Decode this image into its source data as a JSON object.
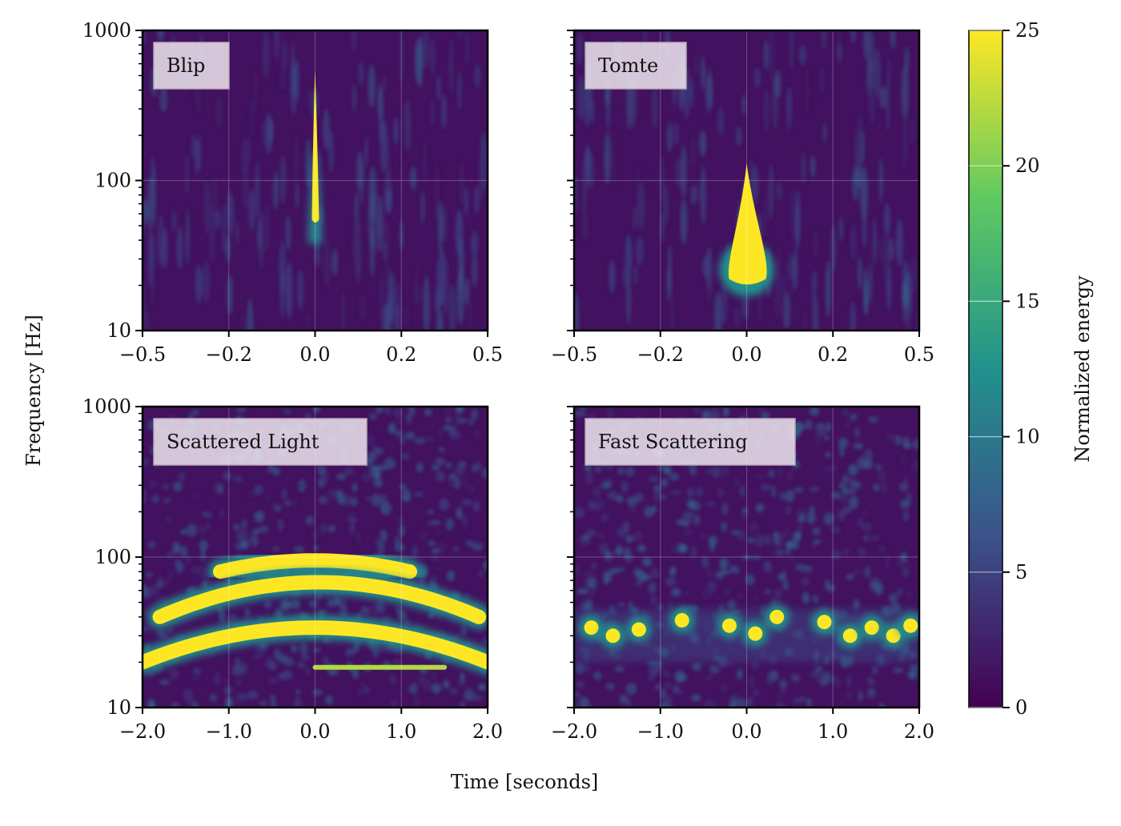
{
  "chart_data": {
    "type": "heatmap",
    "layout": "2x2 grid with shared colorbar",
    "xlabel": "Time [seconds]",
    "ylabel": "Frequency [Hz]",
    "yscale": "log",
    "ylim": [
      10,
      1000
    ],
    "yticks": [
      "10",
      "100",
      "1000"
    ],
    "grid": true,
    "colormap": "viridis",
    "colormap_stops": [
      "#440154",
      "#3b528b",
      "#21918c",
      "#5ec962",
      "#fde725"
    ],
    "colorbar": {
      "label": "Normalized energy",
      "range": [
        0,
        25
      ],
      "ticks": [
        "0",
        "5",
        "10",
        "15",
        "20",
        "25"
      ]
    },
    "panels": [
      {
        "label": "Blip",
        "xlim": [
          -0.5,
          0.5
        ],
        "xticks": [
          "−0.5",
          "−0.2",
          "0.0",
          "0.2",
          "0.5"
        ],
        "features": [
          {
            "kind": "spike",
            "t": 0.0,
            "f_low": 55,
            "f_high": 550,
            "energy": 25
          }
        ]
      },
      {
        "label": "Tomte",
        "xlim": [
          -0.5,
          0.5
        ],
        "xticks": [
          "−0.5",
          "−0.2",
          "0.0",
          "0.2",
          "0.5"
        ],
        "features": [
          {
            "kind": "teardrop",
            "t": 0.0,
            "f_low": 20,
            "f_high": 130,
            "energy": 25
          }
        ]
      },
      {
        "label": "Scattered Light",
        "xlim": [
          -2.0,
          2.0
        ],
        "xticks": [
          "−2.0",
          "−1.0",
          "0.0",
          "1.0",
          "2.0"
        ],
        "features": [
          {
            "kind": "arch",
            "t_start": -1.1,
            "t_end": 1.1,
            "f_peak": 95,
            "f_edge": 80,
            "energy": 25
          },
          {
            "kind": "arch",
            "t_start": -1.8,
            "t_end": 1.9,
            "f_peak": 68,
            "f_edge": 40,
            "energy": 25
          },
          {
            "kind": "arch",
            "t_start": -2.0,
            "t_end": 2.0,
            "f_peak": 34,
            "f_edge": 20,
            "energy": 25
          },
          {
            "kind": "band",
            "t_start": 0.0,
            "t_end": 1.5,
            "f": 18.5,
            "energy": 22
          }
        ]
      },
      {
        "label": "Fast Scattering",
        "xlim": [
          -2.0,
          2.0
        ],
        "xticks": [
          "−2.0",
          "−1.0",
          "0.0",
          "1.0",
          "2.0"
        ],
        "features": [
          {
            "kind": "blobs",
            "points": [
              {
                "t": -1.8,
                "f": 34
              },
              {
                "t": -1.55,
                "f": 30
              },
              {
                "t": -1.25,
                "f": 33
              },
              {
                "t": -0.75,
                "f": 38
              },
              {
                "t": -0.2,
                "f": 35
              },
              {
                "t": 0.1,
                "f": 31
              },
              {
                "t": 0.35,
                "f": 40
              },
              {
                "t": 0.9,
                "f": 37
              },
              {
                "t": 1.2,
                "f": 30
              },
              {
                "t": 1.45,
                "f": 34
              },
              {
                "t": 1.7,
                "f": 30
              },
              {
                "t": 1.9,
                "f": 35
              }
            ],
            "energy": 25
          }
        ]
      }
    ]
  }
}
